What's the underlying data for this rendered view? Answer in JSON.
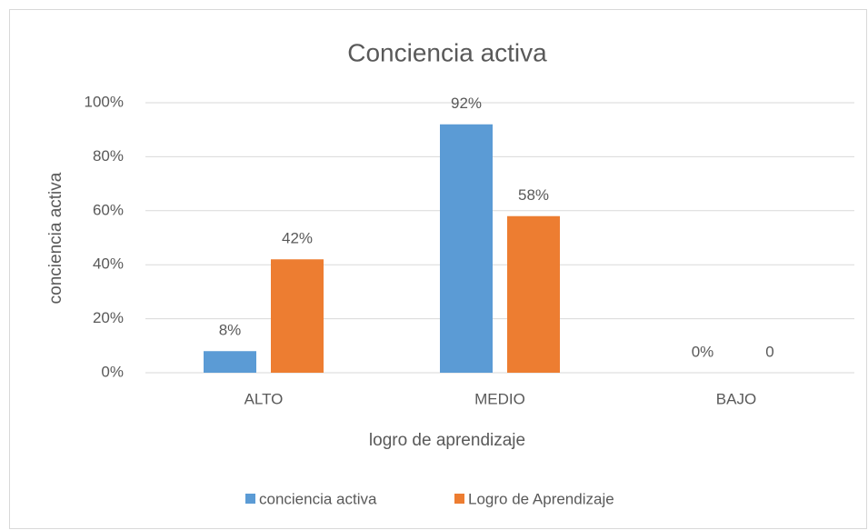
{
  "chart_data": {
    "type": "bar",
    "title": "Conciencia activa",
    "x_label": "logro de aprendizaje",
    "y_label": "conciencia activa",
    "categories": [
      "ALTO",
      "MEDIO",
      "BAJO"
    ],
    "series": [
      {
        "name": "conciencia activa",
        "color": "#5b9bd5",
        "values": [
          8,
          92,
          0
        ],
        "value_labels": [
          "8%",
          "92%",
          "0%"
        ]
      },
      {
        "name": "Logro de Aprendizaje",
        "color": "#ed7d31",
        "values": [
          42,
          58,
          0
        ],
        "value_labels": [
          "42%",
          "58%",
          "0"
        ]
      }
    ],
    "ylim": [
      0,
      100
    ],
    "yticks": [
      {
        "value": 0,
        "label": "0%"
      },
      {
        "value": 20,
        "label": "20%"
      },
      {
        "value": 40,
        "label": "40%"
      },
      {
        "value": 60,
        "label": "60%"
      },
      {
        "value": 80,
        "label": "80%"
      },
      {
        "value": 100,
        "label": "100%"
      }
    ],
    "grid": true,
    "legend": "bottom"
  }
}
